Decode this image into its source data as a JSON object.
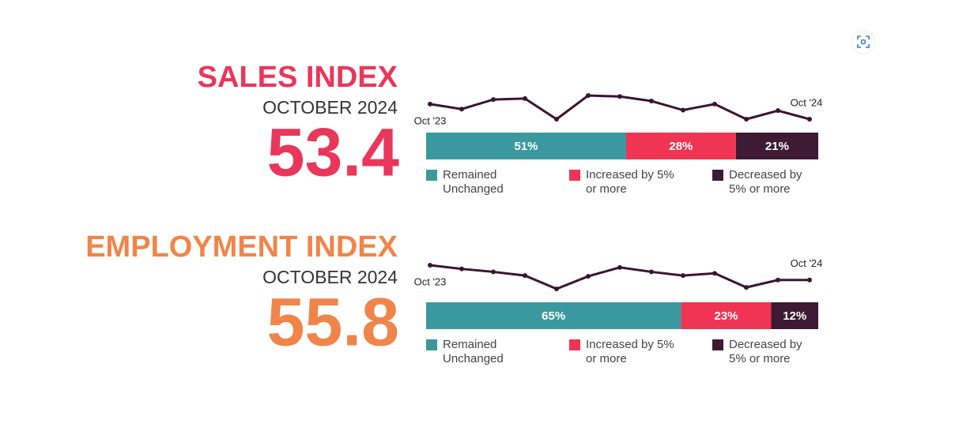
{
  "chart_data": [
    {
      "type": "line",
      "title": "SALES INDEX",
      "subtitle": "OCTOBER 2024",
      "index_value": 53.4,
      "accent": "#e8375a",
      "color": "#3b1530",
      "categories": [
        "Oct '23",
        null,
        null,
        null,
        null,
        null,
        null,
        null,
        null,
        null,
        null,
        null,
        "Oct '24"
      ],
      "values": [
        56.4,
        55.4,
        57.3,
        57.5,
        53.4,
        58.1,
        57.9,
        57.0,
        55.2,
        56.4,
        53.4,
        55.1,
        53.4
      ]
    },
    {
      "type": "bar",
      "stacked": true,
      "categories": [
        "SALES INDEX"
      ],
      "series": [
        {
          "name": "Remained Unchanged",
          "color": "#3a999f",
          "values": [
            51
          ],
          "value_labels": [
            "51%"
          ]
        },
        {
          "name": "Increased by 5% or more",
          "color": "#ef3553",
          "values": [
            28
          ],
          "value_labels": [
            "28%"
          ]
        },
        {
          "name": "Decreased by 5% or more",
          "color": "#3e1a33",
          "values": [
            21
          ],
          "value_labels": [
            "21%"
          ]
        }
      ]
    },
    {
      "type": "line",
      "title": "EMPLOYMENT INDEX",
      "subtitle": "OCTOBER 2024",
      "index_value": 55.8,
      "accent": "#f0854a",
      "color": "#3b1530",
      "categories": [
        "Oct '23",
        null,
        null,
        null,
        null,
        null,
        null,
        null,
        null,
        null,
        null,
        null,
        "Oct '24"
      ],
      "values": [
        57.8,
        57.3,
        56.9,
        56.4,
        54.6,
        56.3,
        57.5,
        56.9,
        56.4,
        56.7,
        54.8,
        55.8,
        55.8
      ]
    },
    {
      "type": "bar",
      "stacked": true,
      "categories": [
        "EMPLOYMENT INDEX"
      ],
      "series": [
        {
          "name": "Remained Unchanged",
          "color": "#3a999f",
          "values": [
            65
          ],
          "value_labels": [
            "65%"
          ]
        },
        {
          "name": "Increased by 5% or more",
          "color": "#ef3553",
          "values": [
            23
          ],
          "value_labels": [
            "23%"
          ]
        },
        {
          "name": "Decreased by 5% or more",
          "color": "#3e1a33",
          "values": [
            12
          ],
          "value_labels": [
            "12%"
          ]
        }
      ]
    }
  ]
}
